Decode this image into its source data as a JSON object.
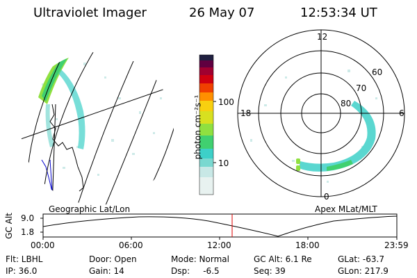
{
  "header": {
    "instrument": "Ultraviolet Imager",
    "date": "26 May 07",
    "time": "12:53:34 UT"
  },
  "colorbar": {
    "label": "photon cm⁻²s⁻¹",
    "ticks": [
      "100",
      "10"
    ],
    "colors": [
      "#e8f2f0",
      "#c8e8e6",
      "#7ad8d0",
      "#3dd0c8",
      "#40d070",
      "#90e040",
      "#d8e020",
      "#f8d010",
      "#ff9000",
      "#f04000",
      "#d00010",
      "#a00030",
      "#600040",
      "#202040"
    ]
  },
  "geo_panel": {
    "caption": "Geographic Lat/Lon"
  },
  "polar_panel": {
    "caption": "Apex MLat/MLT",
    "mlt_labels": [
      "12",
      "18",
      "6",
      "0"
    ],
    "lat_labels": [
      "60",
      "70",
      "80"
    ]
  },
  "timeline": {
    "ylabel": "GC Alt",
    "y_ticks": [
      "9.0",
      "1.8"
    ],
    "x_ticks": [
      "00:00",
      "06:00",
      "12:00",
      "18:00",
      "23:59"
    ],
    "marker_color": "#dd0000"
  },
  "info": {
    "rows": [
      [
        "Flt: LBHL",
        "Door: Open",
        "Mode: Normal",
        "GC Alt: 6.1 Re",
        "GLat: -63.7"
      ],
      [
        "IP: 36.0",
        "Gain: 14",
        "Dsp:     -6.5",
        "Seq: 39",
        "GLon: 217.9"
      ]
    ]
  }
}
